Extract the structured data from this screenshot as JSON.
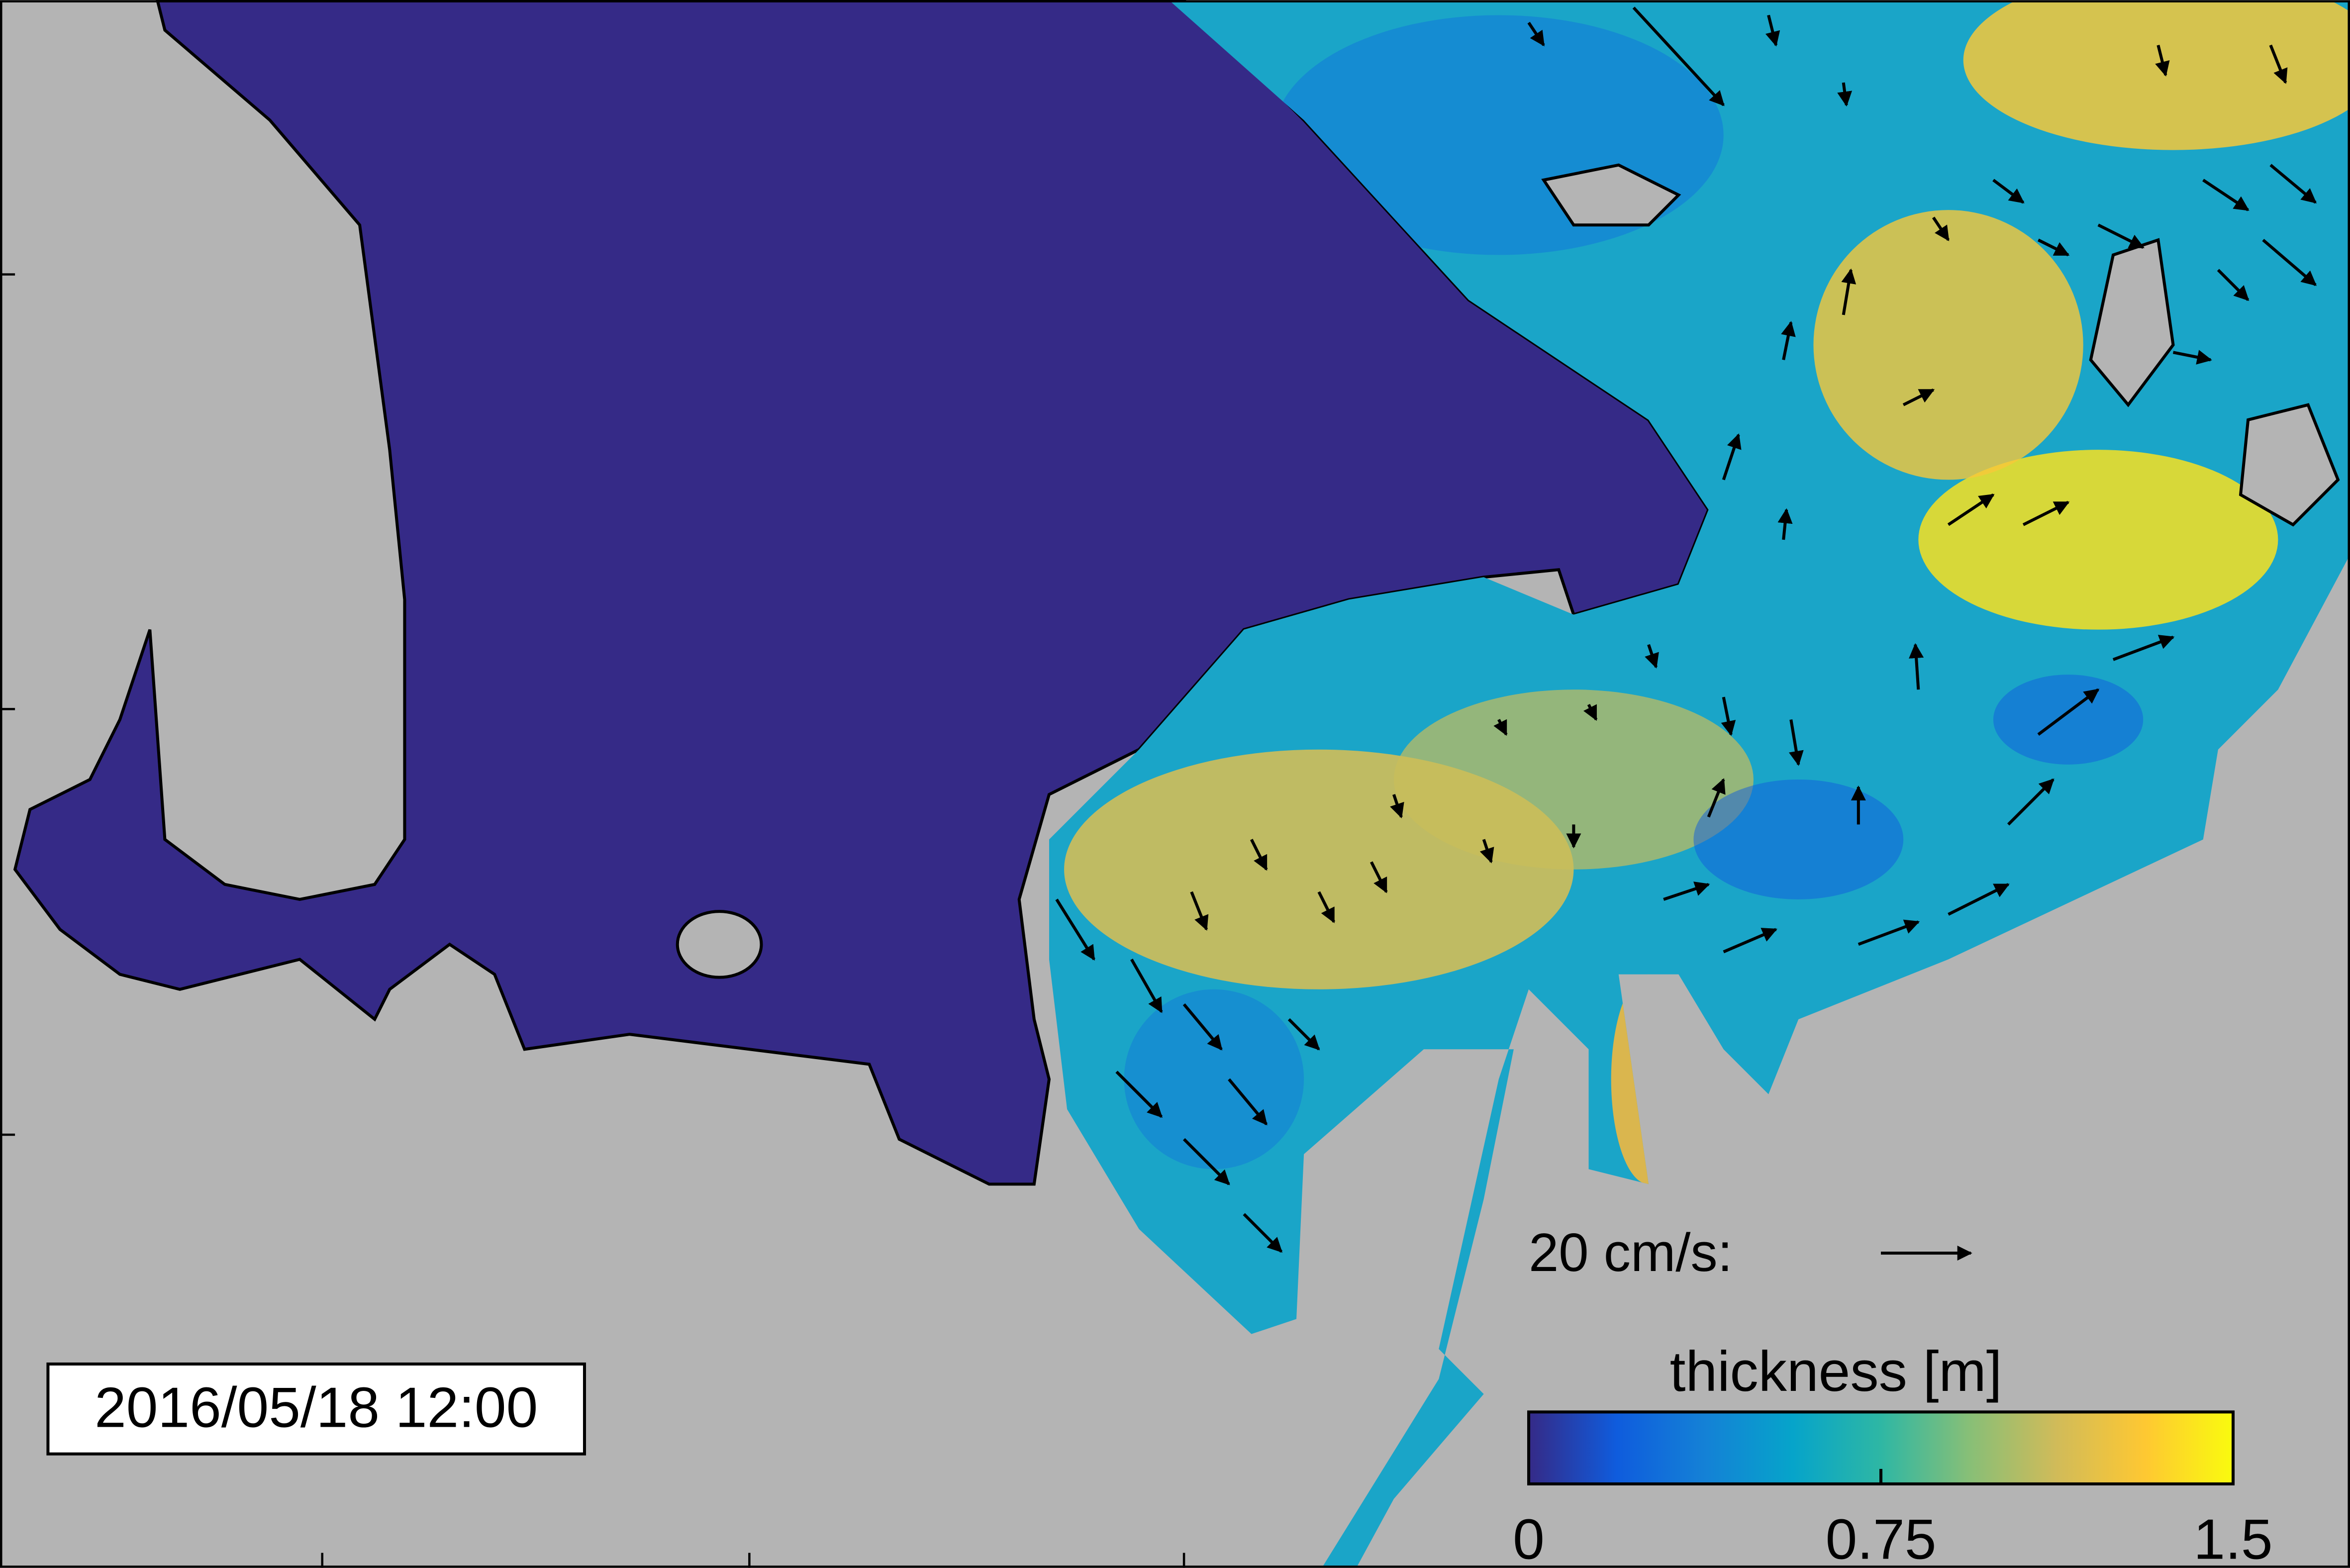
{
  "timestamp": "2016/05/18 12:00",
  "scale_arrow": {
    "label": "20 cm/s:"
  },
  "colorbar": {
    "title": "thickness [m]",
    "lim": [
      0,
      1.5
    ],
    "ticks": [
      0,
      0.75,
      1.5
    ],
    "colors": [
      "#352a87",
      "#0f5cdd",
      "#1481d6",
      "#06a4ca",
      "#2eb7a4",
      "#87bf77",
      "#d1bb59",
      "#fec832",
      "#f9fb0e"
    ]
  }
}
